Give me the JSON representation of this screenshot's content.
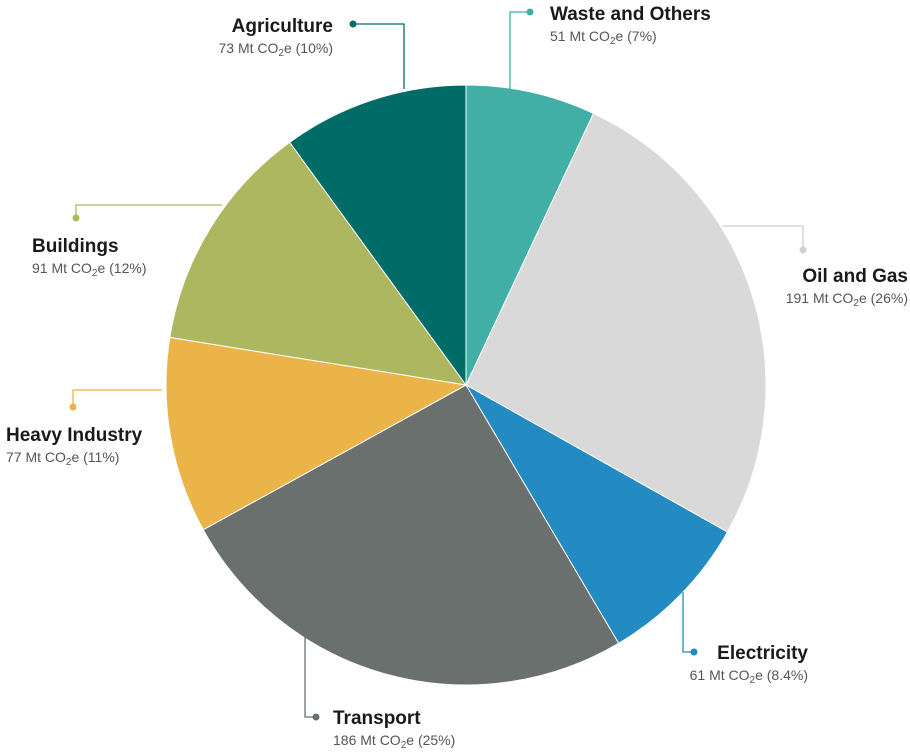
{
  "chart_data": {
    "type": "pie",
    "title": "",
    "unit": "Mt CO₂e",
    "slices": [
      {
        "name": "Waste and Others",
        "value": 51,
        "share": "7%",
        "color": "#41afa6"
      },
      {
        "name": "Oil and Gas",
        "value": 191,
        "share": "26%",
        "color": "#d9d9d9"
      },
      {
        "name": "Electricity",
        "value": 61,
        "share": "8.4%",
        "color": "#238bc1"
      },
      {
        "name": "Transport",
        "value": 186,
        "share": "25%",
        "color": "#6a706e"
      },
      {
        "name": "Heavy Industry",
        "value": 77,
        "share": "11%",
        "color": "#ebb448"
      },
      {
        "name": "Buildings",
        "value": 91,
        "share": "12%",
        "color": "#adb75f"
      },
      {
        "name": "Agriculture",
        "value": 73,
        "share": "10%",
        "color": "#006c67"
      }
    ],
    "start_angle_deg": 0,
    "direction": "clockwise",
    "legend": "none"
  }
}
